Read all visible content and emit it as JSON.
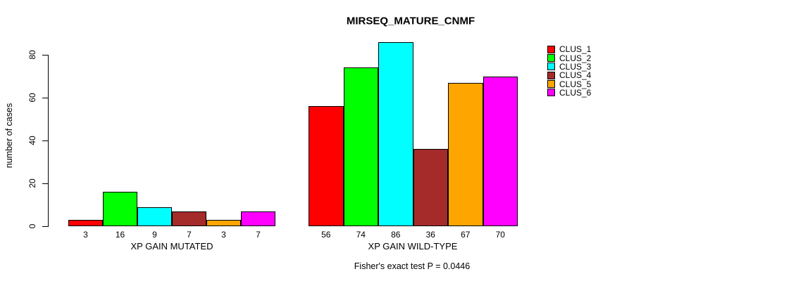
{
  "chart_data": {
    "type": "bar",
    "title": "MIRSEQ_MATURE_CNMF",
    "ylabel": "number of cases",
    "xlabel": "",
    "yticks": [
      0,
      20,
      40,
      60,
      80
    ],
    "ylim": [
      0,
      86
    ],
    "grid": false,
    "legend_position": "right",
    "bar_border_color": "#000000",
    "categories": [
      "XP GAIN MUTATED",
      "XP GAIN WILD-TYPE"
    ],
    "series": [
      {
        "name": "CLUS_1",
        "color": "#ff0000",
        "values": [
          3,
          56
        ]
      },
      {
        "name": "CLUS_2",
        "color": "#00ff00",
        "values": [
          16,
          74
        ]
      },
      {
        "name": "CLUS_3",
        "color": "#00ffff",
        "values": [
          9,
          86
        ]
      },
      {
        "name": "CLUS_4",
        "color": "#a52a2a",
        "values": [
          7,
          36
        ]
      },
      {
        "name": "CLUS_5",
        "color": "#ffa500",
        "values": [
          3,
          67
        ]
      },
      {
        "name": "CLUS_6",
        "color": "#ff00ff",
        "values": [
          7,
          70
        ]
      }
    ],
    "bar_labels_shown": true,
    "annotation": "Fisher's exact test P = 0.0446"
  }
}
